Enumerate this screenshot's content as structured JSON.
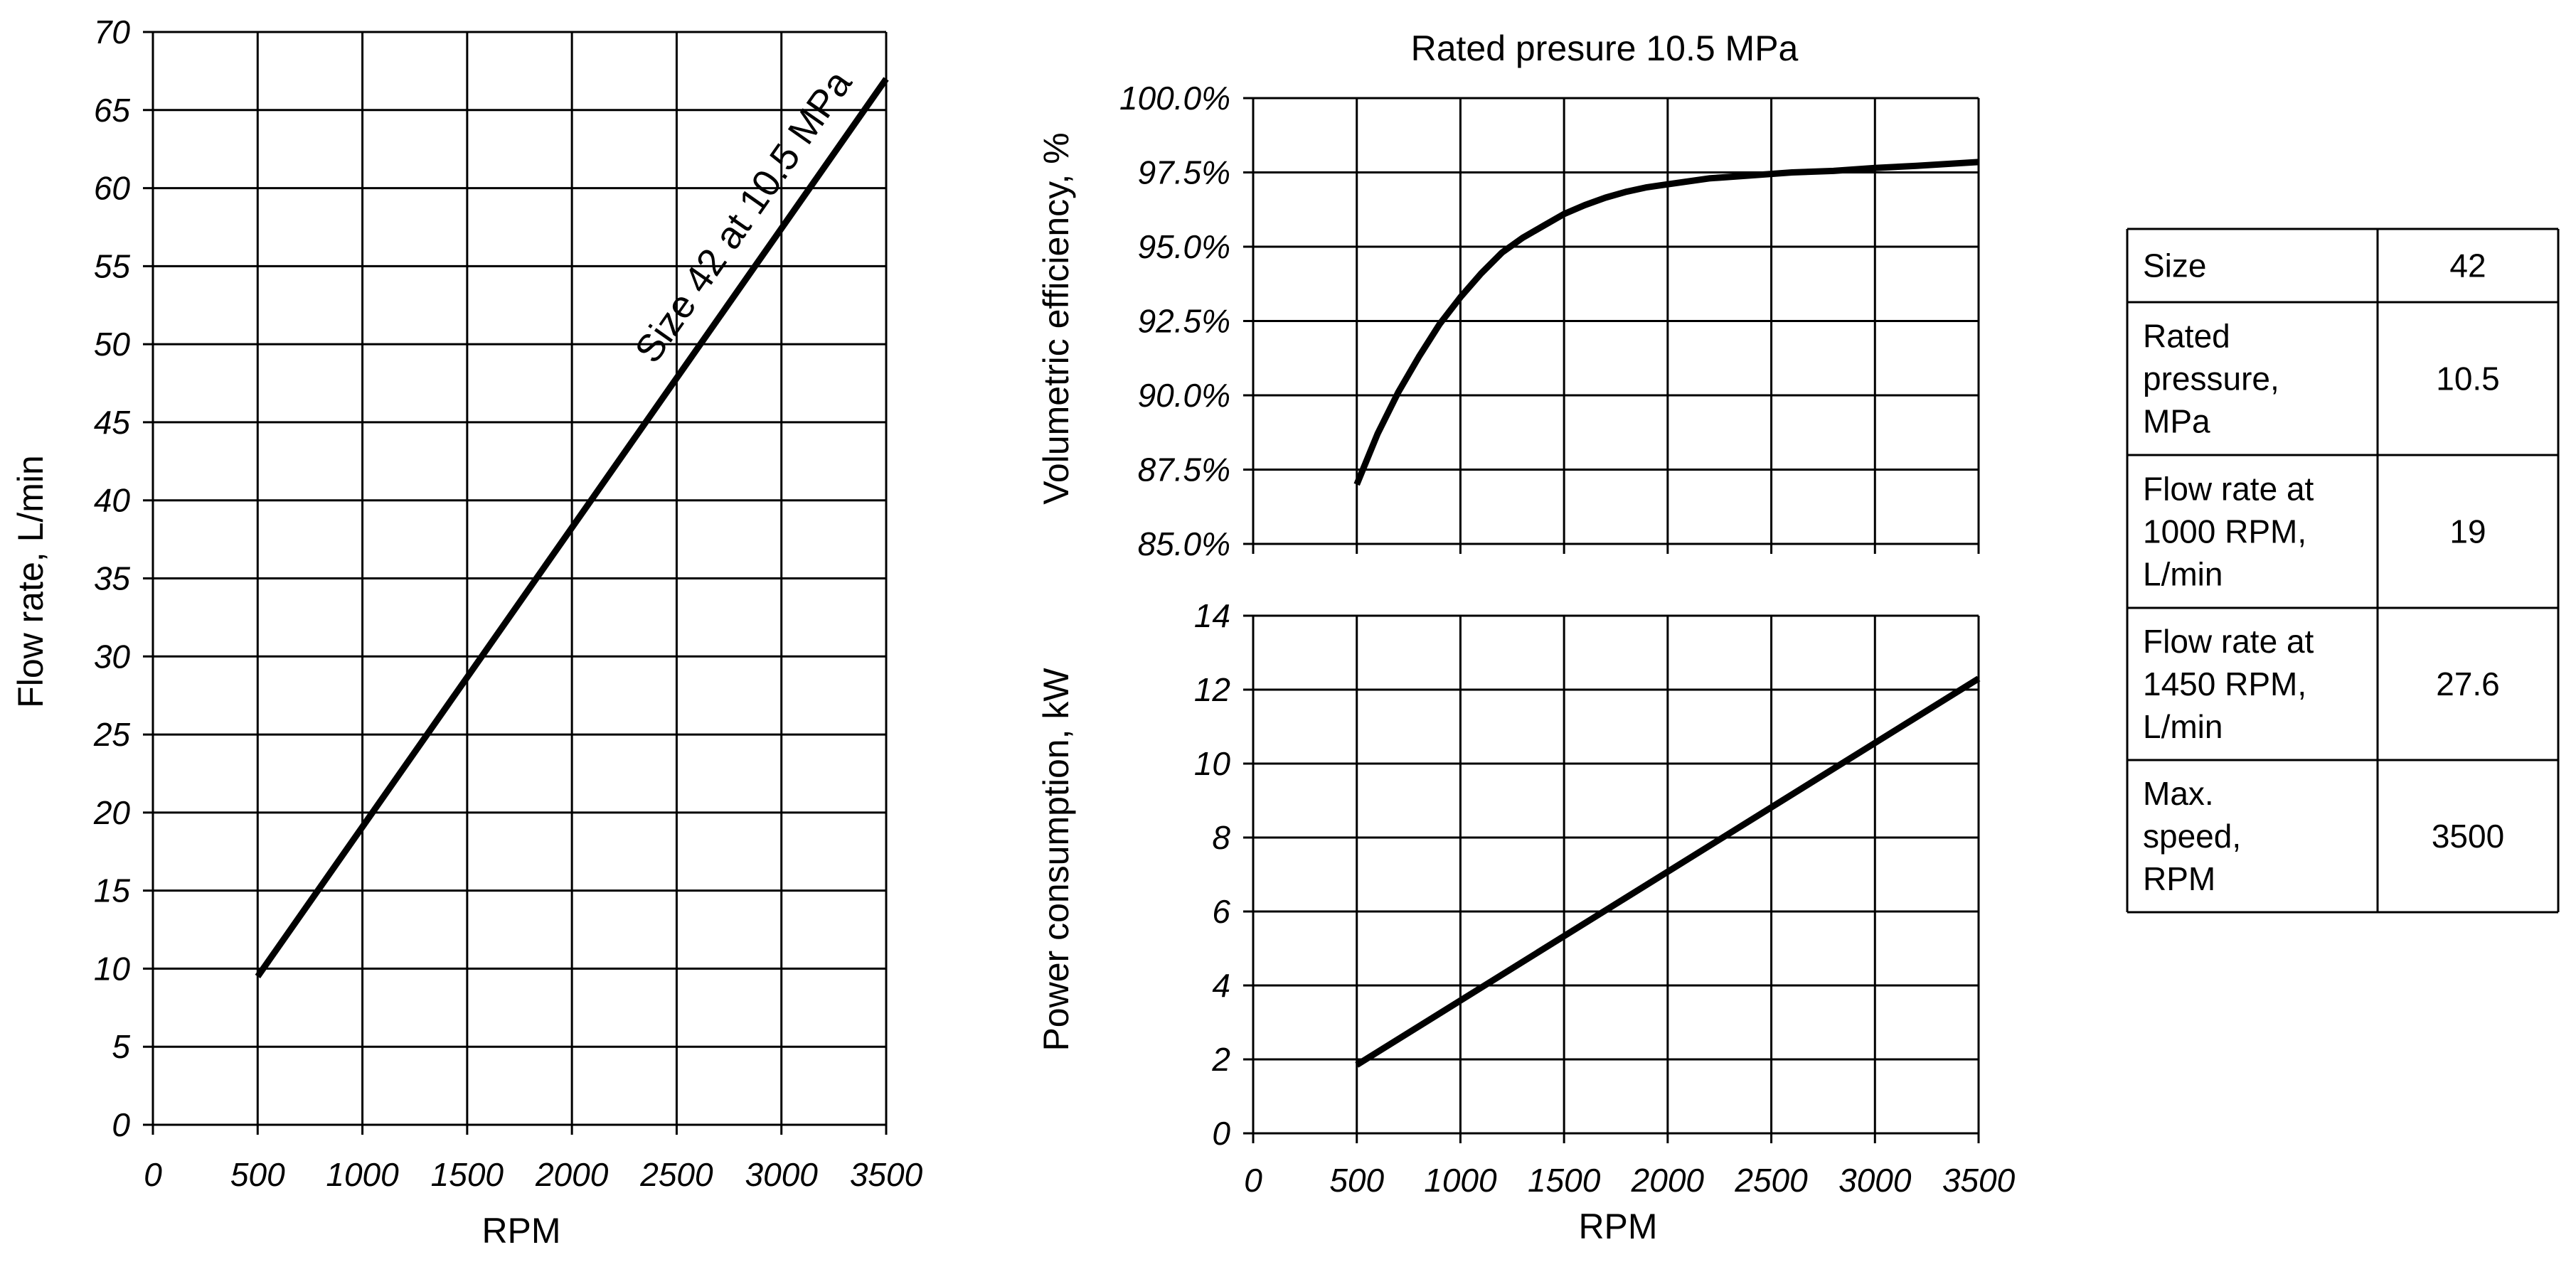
{
  "chart_data": [
    {
      "id": "flow",
      "type": "line",
      "title": "",
      "xlabel": "RPM",
      "ylabel": "Flow rate, L/min",
      "xlim": [
        0,
        3500
      ],
      "ylim": [
        0,
        70
      ],
      "xticks": [
        "0",
        "500",
        "1000",
        "1500",
        "2000",
        "2500",
        "3000",
        "3500"
      ],
      "yticks": [
        "0",
        "5",
        "10",
        "15",
        "20",
        "25",
        "30",
        "35",
        "40",
        "45",
        "50",
        "55",
        "60",
        "65",
        "70"
      ],
      "grid": true,
      "annotation": "Size 42 at 10.5 MPa",
      "series": [
        {
          "name": "Size 42 at 10.5 MPa",
          "x": [
            500,
            3500
          ],
          "y": [
            9.5,
            67
          ]
        }
      ]
    },
    {
      "id": "efficiency",
      "type": "line",
      "title": "Rated presure 10.5 MPa",
      "xlabel": "",
      "ylabel": "Volumetric efficiency, %",
      "xlim": [
        0,
        3500
      ],
      "ylim": [
        85,
        100
      ],
      "xticks": [],
      "yticks": [
        "85.0%",
        "87.5%",
        "90.0%",
        "92.5%",
        "95.0%",
        "97.5%",
        "100.0%"
      ],
      "grid": true,
      "series": [
        {
          "name": "Volumetric efficiency",
          "x": [
            500,
            600,
            700,
            800,
            900,
            1000,
            1100,
            1200,
            1300,
            1400,
            1500,
            1600,
            1700,
            1800,
            1900,
            2000,
            2200,
            2400,
            2600,
            2800,
            3000,
            3200,
            3500
          ],
          "y": [
            87.0,
            88.7,
            90.1,
            91.3,
            92.4,
            93.3,
            94.1,
            94.8,
            95.3,
            95.7,
            96.1,
            96.4,
            96.65,
            96.85,
            97.0,
            97.1,
            97.3,
            97.4,
            97.5,
            97.55,
            97.65,
            97.72,
            97.85
          ]
        }
      ]
    },
    {
      "id": "power",
      "type": "line",
      "title": "",
      "xlabel": "RPM",
      "ylabel": "Power consumption, kW",
      "xlim": [
        0,
        3500
      ],
      "ylim": [
        0,
        14
      ],
      "xticks": [
        "0",
        "500",
        "1000",
        "1500",
        "2000",
        "2500",
        "3000",
        "3500"
      ],
      "yticks": [
        "0",
        "2",
        "4",
        "6",
        "8",
        "10",
        "12",
        "14"
      ],
      "grid": true,
      "series": [
        {
          "name": "Power consumption",
          "x": [
            500,
            3500
          ],
          "y": [
            1.85,
            12.3
          ]
        }
      ]
    }
  ],
  "spec_table": {
    "rows": [
      {
        "label": [
          "Size"
        ],
        "value": "42"
      },
      {
        "label": [
          "Rated",
          "pressure,",
          "MPa"
        ],
        "value": "10.5"
      },
      {
        "label": [
          "Flow rate at",
          "1000 RPM,",
          "L/min"
        ],
        "value": "19"
      },
      {
        "label": [
          "Flow rate at",
          "1450 RPM,",
          "L/min"
        ],
        "value": "27.6"
      },
      {
        "label": [
          "Max.",
          "speed,",
          "RPM"
        ],
        "value": "3500"
      }
    ]
  }
}
